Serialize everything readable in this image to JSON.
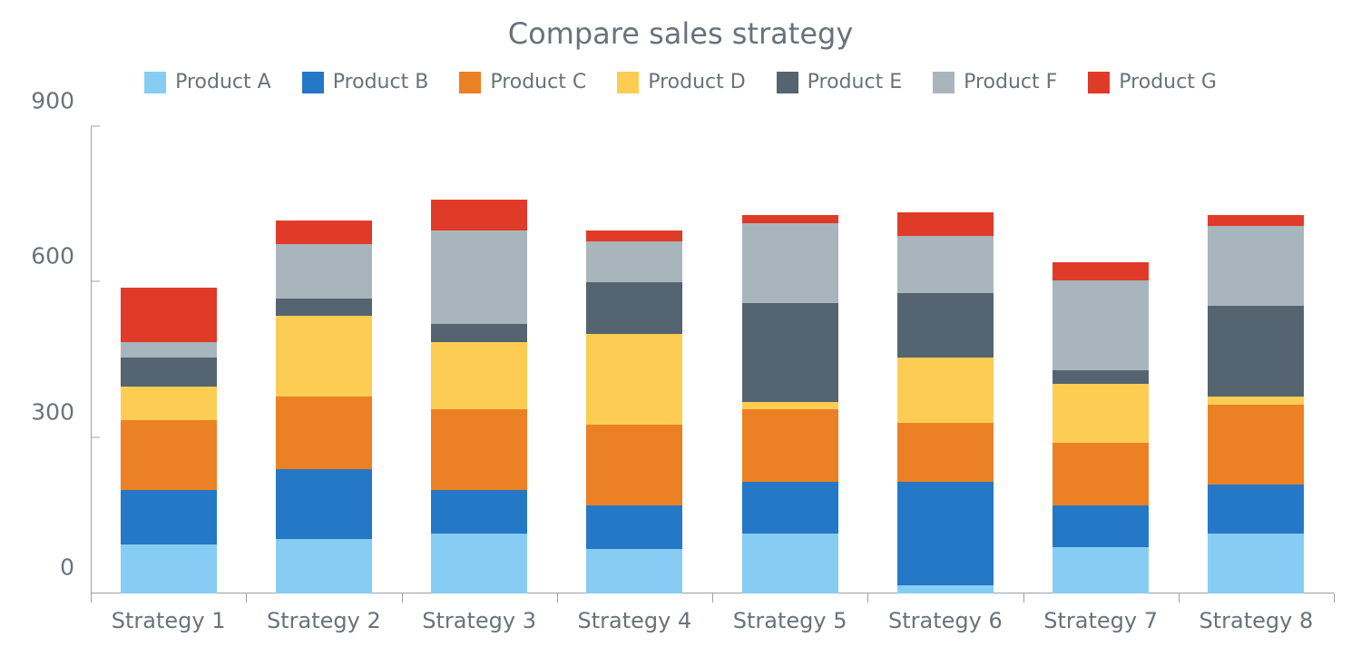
{
  "chart": {
    "type": "stacked-bar",
    "title": "Compare sales strategy",
    "title_fontsize": 32,
    "title_color": "#69727b",
    "font_family": "Verdana",
    "axis_label_fontsize": 24,
    "legend_fontsize": 22,
    "axis_text_color": "#69727b",
    "axis_line_color": "#9aa1a8",
    "background_color": "#ffffff",
    "y": {
      "min": 0,
      "max": 900,
      "ticks": [
        0,
        300,
        600,
        900
      ]
    },
    "categories": [
      "Strategy 1",
      "Strategy 2",
      "Strategy 3",
      "Strategy 4",
      "Strategy 5",
      "Strategy 6",
      "Strategy 7",
      "Strategy 8"
    ],
    "series": [
      {
        "name": "Product A",
        "color": "#87cdf3"
      },
      {
        "name": "Product B",
        "color": "#2478c6"
      },
      {
        "name": "Product C",
        "color": "#ec8024"
      },
      {
        "name": "Product D",
        "color": "#fccd52"
      },
      {
        "name": "Product E",
        "color": "#546470"
      },
      {
        "name": "Product F",
        "color": "#a9b5bd"
      },
      {
        "name": "Product G",
        "color": "#e03b28"
      }
    ],
    "values": [
      [
        95,
        105,
        135,
        65,
        55,
        30,
        105
      ],
      [
        105,
        135,
        140,
        155,
        35,
        105,
        45
      ],
      [
        115,
        85,
        155,
        130,
        35,
        180,
        60
      ],
      [
        85,
        85,
        155,
        175,
        100,
        80,
        20
      ],
      [
        115,
        100,
        140,
        15,
        190,
        155,
        15
      ],
      [
        15,
        200,
        115,
        125,
        125,
        110,
        45
      ],
      [
        90,
        80,
        120,
        115,
        25,
        175,
        35
      ],
      [
        115,
        95,
        155,
        15,
        175,
        155,
        20
      ]
    ],
    "bar_width_ratio": 0.62
  }
}
